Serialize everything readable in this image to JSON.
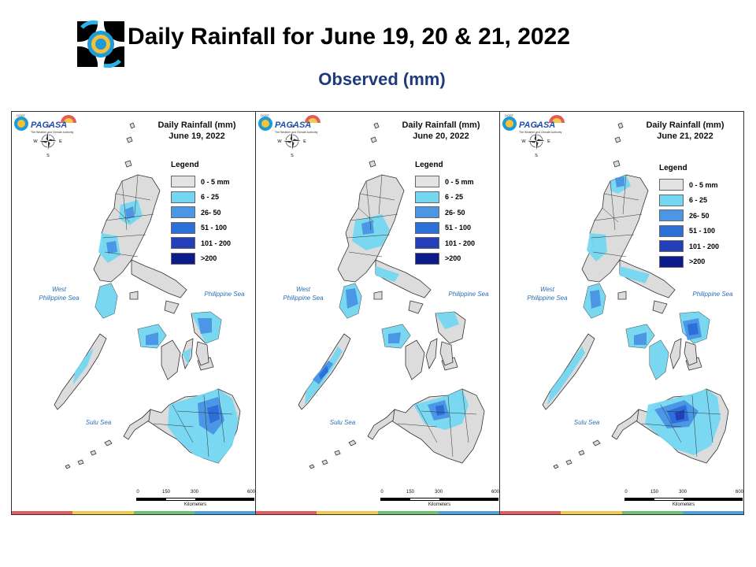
{
  "header": {
    "title": "Daily Rainfall for June 19, 20 & 21, 2022",
    "subtitle": "Observed (mm)"
  },
  "panels": [
    {
      "title_line1": "Daily Rainfall (mm)",
      "date": "June 19, 2022"
    },
    {
      "title_line1": "Daily Rainfall (mm)",
      "date": "June 20, 2022"
    },
    {
      "title_line1": "Daily Rainfall (mm)",
      "date": "June 21, 2022"
    }
  ],
  "legend": {
    "heading": "Legend",
    "classes": [
      {
        "label": "0 - 5 mm",
        "color": "#e3e3e3"
      },
      {
        "label": "6 - 25",
        "color": "#74d7f2"
      },
      {
        "label": "26- 50",
        "color": "#4b97e5"
      },
      {
        "label": "51 - 100",
        "color": "#2c6fd8"
      },
      {
        "label": "101 - 200",
        "color": "#2340b8"
      },
      {
        "label": ">200",
        "color": "#0b1b8a"
      }
    ]
  },
  "seas": {
    "west": "West\nPhilippine Sea",
    "east": "Philippine Sea",
    "south": "Sulu Sea"
  },
  "compass": {
    "n": "N",
    "s": "S",
    "e": "E",
    "w": "W"
  },
  "scale_bar": {
    "ticks": [
      "0",
      "150",
      "300",
      "600"
    ],
    "unit": "Kilometers"
  },
  "branding": {
    "agency": "PAGASA",
    "prefix": "DOST",
    "tagline": "The Weather and Climate Authority"
  },
  "colors": {
    "land": "#dcdcdc",
    "land_stroke": "#333333",
    "title_blue": "#1f3a7a",
    "strip": [
      "#e35d5d",
      "#f2c94c",
      "#6fbf73",
      "#4aa3df"
    ]
  }
}
